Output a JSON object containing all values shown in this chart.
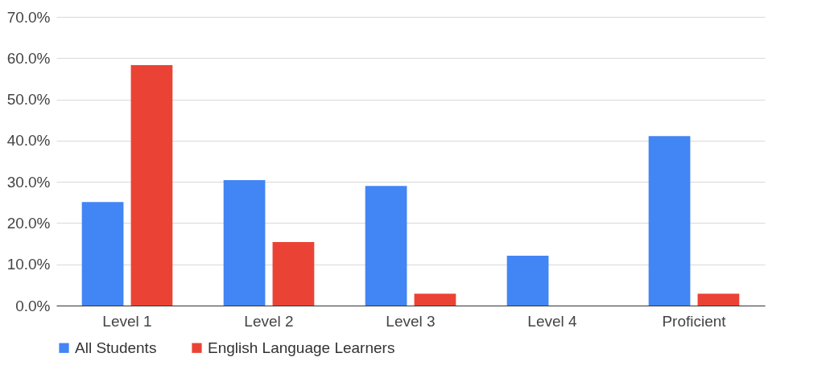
{
  "chart_data": {
    "type": "bar",
    "categories": [
      "Level 1",
      "Level 2",
      "Level 3",
      "Level 4",
      "Proficient"
    ],
    "series": [
      {
        "name": "All Students",
        "color": "#4285f4",
        "values": [
          25.1,
          30.4,
          29.0,
          12.1,
          41.1
        ]
      },
      {
        "name": "English Language Learners",
        "color": "#ea4335",
        "values": [
          58.3,
          15.4,
          2.9,
          0,
          2.9
        ]
      }
    ],
    "ylim": [
      0,
      70
    ],
    "yticks": [
      {
        "value": 0,
        "label": "0.0%"
      },
      {
        "value": 10,
        "label": "10.0%"
      },
      {
        "value": 20,
        "label": "20.0%"
      },
      {
        "value": 30,
        "label": "30.0%"
      },
      {
        "value": 40,
        "label": "40.0%"
      },
      {
        "value": 50,
        "label": "50.0%"
      },
      {
        "value": 60,
        "label": "60.0%"
      },
      {
        "value": 70,
        "label": "70.0%"
      }
    ],
    "grid": "y",
    "legend": "bottom"
  }
}
